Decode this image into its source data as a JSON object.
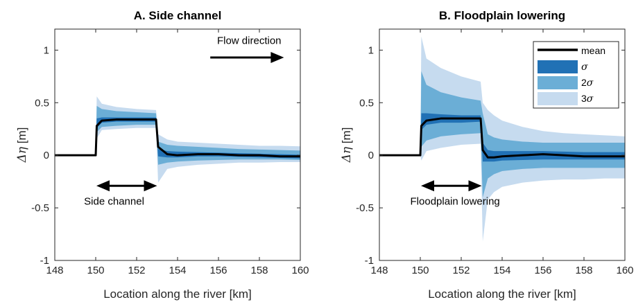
{
  "chart_data": [
    {
      "type": "area",
      "title": "A. Side channel",
      "xlabel": "Location along the river [km]",
      "ylabel_base": "Δη",
      "ylabel_unit": " [m]",
      "xlim": [
        148,
        160
      ],
      "ylim": [
        -1,
        1.2
      ],
      "xticks": [
        "148",
        "150",
        "152",
        "154",
        "156",
        "158",
        "160"
      ],
      "yticks": [
        "-1",
        "-0.5",
        "0",
        "0.5",
        "1"
      ],
      "grid": false,
      "annotations": {
        "flow_label": "Flow direction",
        "measure_label": "Side channel",
        "measure_from": 150,
        "measure_to": 153
      },
      "x": [
        148,
        150,
        150.05,
        150.3,
        151,
        152,
        152.95,
        153.05,
        153.5,
        154,
        155,
        156,
        157,
        158,
        159,
        160
      ],
      "mean": [
        0,
        0,
        0.28,
        0.33,
        0.34,
        0.34,
        0.34,
        0.08,
        0.01,
        0.0,
        0.01,
        0.01,
        0.0,
        0.0,
        -0.01,
        -0.01
      ],
      "s1_low": [
        0,
        0,
        0.26,
        0.31,
        0.32,
        0.32,
        0.32,
        -0.01,
        -0.02,
        -0.02,
        -0.01,
        -0.01,
        -0.015,
        -0.02,
        -0.025,
        -0.03
      ],
      "s1_high": [
        0,
        0,
        0.35,
        0.36,
        0.36,
        0.36,
        0.36,
        0.06,
        0.04,
        0.035,
        0.03,
        0.025,
        0.02,
        0.015,
        0.01,
        0.005
      ],
      "s2_low": [
        0,
        0,
        0.22,
        0.27,
        0.28,
        0.29,
        0.29,
        -0.09,
        -0.07,
        -0.06,
        -0.05,
        -0.045,
        -0.04,
        -0.04,
        -0.04,
        -0.045
      ],
      "s2_high": [
        0,
        0,
        0.47,
        0.44,
        0.42,
        0.41,
        0.4,
        0.13,
        0.1,
        0.09,
        0.08,
        0.07,
        0.06,
        0.055,
        0.05,
        0.045
      ],
      "s3_low": [
        0,
        0,
        0.16,
        0.24,
        0.25,
        0.26,
        0.26,
        -0.26,
        -0.13,
        -0.11,
        -0.09,
        -0.08,
        -0.07,
        -0.07,
        -0.065,
        -0.065
      ],
      "s3_high": [
        0,
        0,
        0.56,
        0.49,
        0.46,
        0.44,
        0.43,
        0.2,
        0.15,
        0.13,
        0.12,
        0.11,
        0.1,
        0.09,
        0.09,
        0.085
      ]
    },
    {
      "type": "area",
      "title": "B. Floodplain lowering",
      "xlabel": "Location along the river [km]",
      "ylabel_base": "Δη",
      "ylabel_unit": " [m]",
      "xlim": [
        148,
        160
      ],
      "ylim": [
        -1,
        1.2
      ],
      "xticks": [
        "148",
        "150",
        "152",
        "154",
        "156",
        "158",
        "160"
      ],
      "yticks": [
        "-1",
        "-0.5",
        "0",
        "0.5",
        "1"
      ],
      "grid": false,
      "annotations": {
        "measure_label": "Floodplain lowering",
        "measure_from": 150,
        "measure_to": 153
      },
      "legend": {
        "placement": "top-right",
        "entries": [
          "mean",
          "σ",
          "2σ",
          "3σ"
        ]
      },
      "x": [
        148,
        150,
        150.05,
        150.3,
        151,
        152,
        152.95,
        153.05,
        153.3,
        153.6,
        154,
        155,
        156,
        157,
        158,
        159,
        160
      ],
      "mean": [
        0,
        0,
        0.28,
        0.33,
        0.35,
        0.35,
        0.35,
        0.05,
        -0.02,
        -0.02,
        -0.01,
        0.0,
        0.01,
        0.0,
        -0.01,
        -0.01,
        -0.01
      ],
      "s1_low": [
        0,
        0,
        0.24,
        0.29,
        0.31,
        0.31,
        0.32,
        -0.06,
        -0.06,
        -0.06,
        -0.05,
        -0.045,
        -0.04,
        -0.04,
        -0.04,
        -0.04,
        -0.04
      ],
      "s1_high": [
        0,
        0,
        0.4,
        0.4,
        0.39,
        0.38,
        0.38,
        0.12,
        0.05,
        0.04,
        0.04,
        0.04,
        0.04,
        0.035,
        0.03,
        0.03,
        0.03
      ],
      "s2_low": [
        0,
        0,
        0.08,
        0.14,
        0.18,
        0.2,
        0.21,
        -0.4,
        -0.22,
        -0.18,
        -0.15,
        -0.13,
        -0.12,
        -0.12,
        -0.12,
        -0.12,
        -0.12
      ],
      "s2_high": [
        0,
        0,
        0.8,
        0.67,
        0.6,
        0.55,
        0.52,
        0.4,
        0.2,
        0.17,
        0.15,
        0.13,
        0.12,
        0.12,
        0.12,
        0.12,
        0.12
      ],
      "s3_low": [
        0,
        0,
        -0.05,
        0.04,
        0.07,
        0.1,
        0.11,
        -0.82,
        -0.42,
        -0.35,
        -0.3,
        -0.26,
        -0.24,
        -0.23,
        -0.23,
        -0.22,
        -0.22
      ],
      "s3_high": [
        0,
        0,
        1.13,
        0.92,
        0.83,
        0.75,
        0.7,
        0.5,
        0.43,
        0.38,
        0.33,
        0.27,
        0.23,
        0.21,
        0.2,
        0.19,
        0.18
      ]
    }
  ],
  "colors": {
    "s1": "#2171b5",
    "s2": "#6baed6",
    "s3": "#c6dbef",
    "mean": "#000000",
    "axis": "#262626"
  }
}
